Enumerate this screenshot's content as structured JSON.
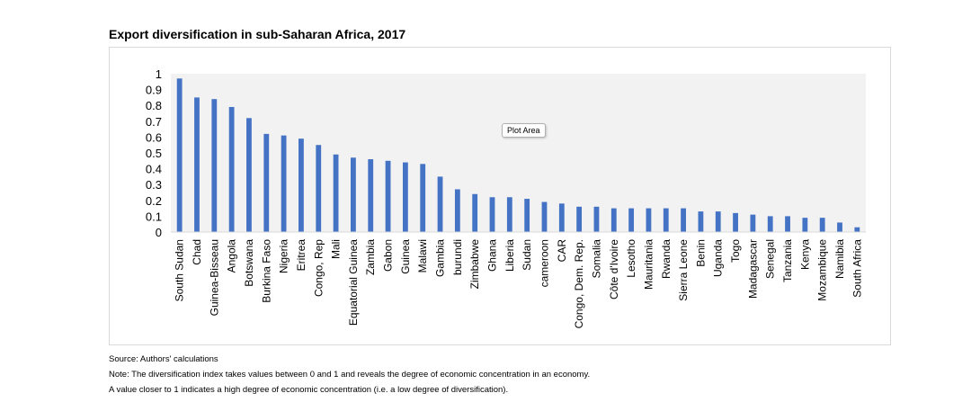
{
  "title": "Export diversification in sub-Saharan Africa, 2017",
  "tooltip": "Plot Area",
  "notes": {
    "source": "Source: Authors' calculations",
    "note": "Note: The diversification index takes values between 0 and 1 and reveals the degree of economic concentration in an economy.",
    "note2": "A value closer to 1 indicates a high degree of economic concentration (i.e. a low degree of diversification)."
  },
  "colors": {
    "bar": "#4472C4",
    "plot_area": "#f2f2f2"
  },
  "chart_data": {
    "type": "bar",
    "title": "Export diversification in sub-Saharan Africa, 2017",
    "xlabel": "",
    "ylabel": "",
    "ylim": [
      0,
      1
    ],
    "yticks": [
      "0",
      "0.1",
      "0.2",
      "0.3",
      "0.4",
      "0.5",
      "0.6",
      "0.7",
      "0.8",
      "0.9",
      "1"
    ],
    "grid": false,
    "legend": "none",
    "categories": [
      "South Sudan",
      "Chad",
      "Guinea-Bisseau",
      "Angola",
      "Botswana",
      "Burkina Faso",
      "Nigeria",
      "Eritrea",
      "Congo, Rep",
      "Mali",
      "Equatorial Guinea",
      "Zambia",
      "Gabon",
      "Guinea",
      "Malawi",
      "Gambia",
      "burundi",
      "Zimbabwe",
      "Ghana",
      "Liberia",
      "Sudan",
      "cameroon",
      "CAR",
      "Congo, Dem. Rep.",
      "Somalia",
      "Côte d'Ivoire",
      "Lesotho",
      "Mauritania",
      "Rwanda",
      "Sierra Leone",
      "Benin",
      "Uganda",
      "Togo",
      "Madagascar",
      "Senegal",
      "Tanzania",
      "Kenya",
      "Mozambique",
      "Namibia",
      "South Africa"
    ],
    "values": [
      0.97,
      0.85,
      0.84,
      0.79,
      0.72,
      0.62,
      0.61,
      0.59,
      0.55,
      0.49,
      0.47,
      0.46,
      0.45,
      0.44,
      0.43,
      0.35,
      0.27,
      0.24,
      0.22,
      0.22,
      0.21,
      0.19,
      0.18,
      0.16,
      0.16,
      0.15,
      0.15,
      0.15,
      0.15,
      0.15,
      0.13,
      0.13,
      0.12,
      0.11,
      0.1,
      0.1,
      0.09,
      0.09,
      0.06,
      0.03
    ]
  }
}
